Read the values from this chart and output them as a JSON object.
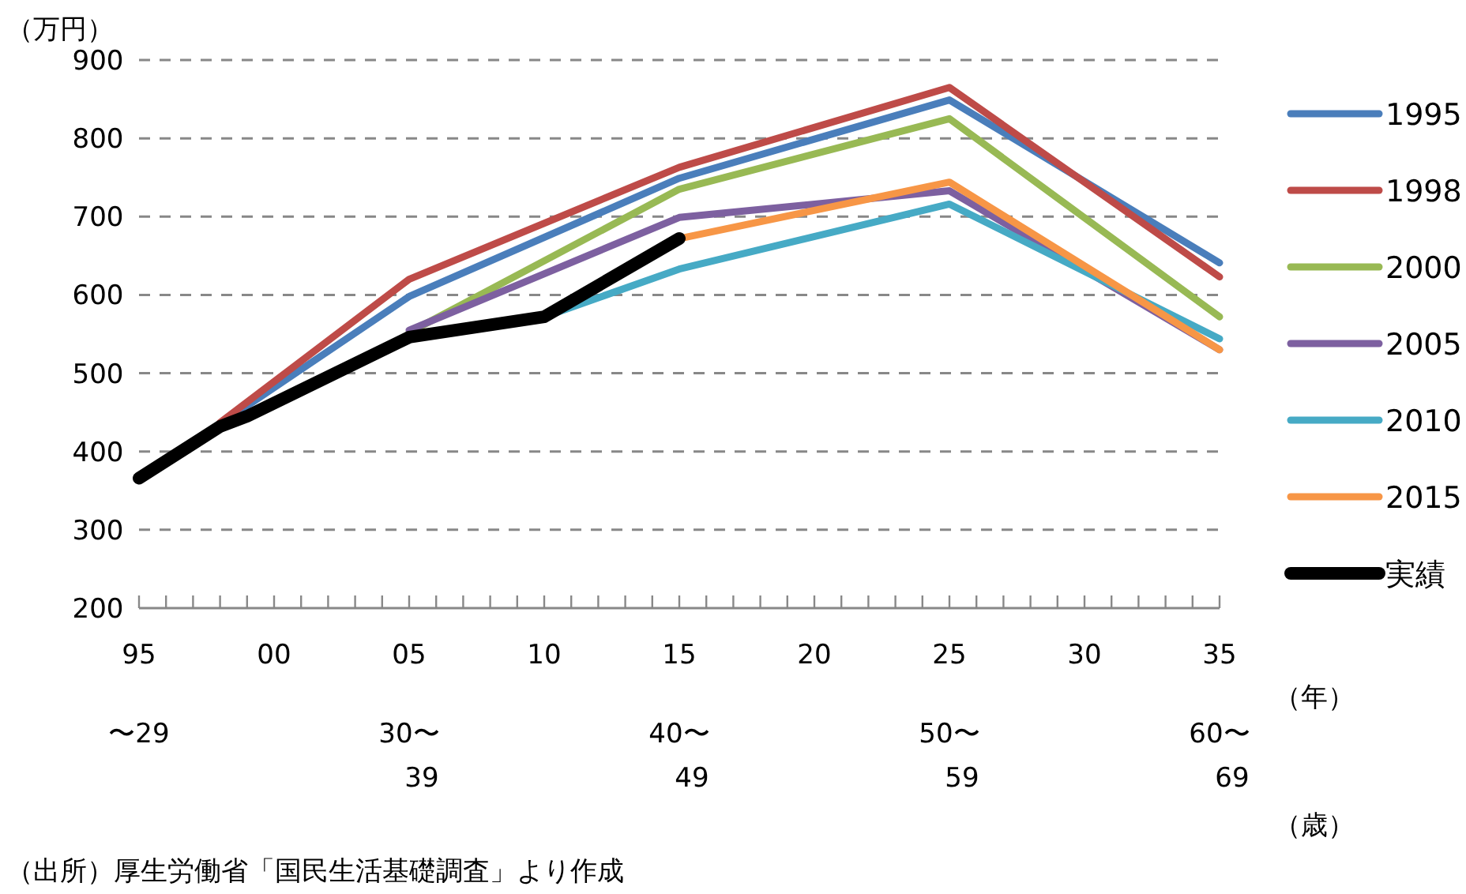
{
  "chart_data": {
    "type": "line",
    "ylabel": "（万円）",
    "xlabel": "（年）",
    "xlim": [
      1995,
      2035
    ],
    "ylim": [
      200,
      900
    ],
    "yticks": [
      200,
      300,
      400,
      500,
      600,
      700,
      800,
      900
    ],
    "xticks": [
      {
        "value": 1995,
        "label": "95"
      },
      {
        "value": 1996,
        "label": null
      },
      {
        "value": 1997,
        "label": null
      },
      {
        "value": 1998,
        "label": null
      },
      {
        "value": 1999,
        "label": null
      },
      {
        "value": 2000,
        "label": "00"
      },
      {
        "value": 2001,
        "label": null
      },
      {
        "value": 2002,
        "label": null
      },
      {
        "value": 2003,
        "label": null
      },
      {
        "value": 2004,
        "label": null
      },
      {
        "value": 2005,
        "label": "05"
      },
      {
        "value": 2006,
        "label": null
      },
      {
        "value": 2007,
        "label": null
      },
      {
        "value": 2008,
        "label": null
      },
      {
        "value": 2009,
        "label": null
      },
      {
        "value": 2010,
        "label": "10"
      },
      {
        "value": 2011,
        "label": null
      },
      {
        "value": 2012,
        "label": null
      },
      {
        "value": 2013,
        "label": null
      },
      {
        "value": 2014,
        "label": null
      },
      {
        "value": 2015,
        "label": "15"
      },
      {
        "value": 2016,
        "label": null
      },
      {
        "value": 2017,
        "label": null
      },
      {
        "value": 2018,
        "label": null
      },
      {
        "value": 2019,
        "label": null
      },
      {
        "value": 2020,
        "label": "20"
      },
      {
        "value": 2021,
        "label": null
      },
      {
        "value": 2022,
        "label": null
      },
      {
        "value": 2023,
        "label": null
      },
      {
        "value": 2024,
        "label": null
      },
      {
        "value": 2025,
        "label": "25"
      },
      {
        "value": 2026,
        "label": null
      },
      {
        "value": 2027,
        "label": null
      },
      {
        "value": 2028,
        "label": null
      },
      {
        "value": 2029,
        "label": null
      },
      {
        "value": 2030,
        "label": "30"
      },
      {
        "value": 2031,
        "label": null
      },
      {
        "value": 2032,
        "label": null
      },
      {
        "value": 2033,
        "label": null
      },
      {
        "value": 2034,
        "label": null
      },
      {
        "value": 2035,
        "label": "35"
      }
    ],
    "grid": "y",
    "line_style": "solid",
    "legend": "right",
    "marker": "none",
    "series": [
      {
        "name": "1995",
        "color": "#4a7ebb",
        "x": [
          1998,
          2005,
          2015,
          2025,
          2035
        ],
        "values": [
          435,
          598,
          749,
          849,
          641
        ]
      },
      {
        "name": "1998",
        "color": "#be4b48",
        "x": [
          1998,
          2005,
          2015,
          2025,
          2035
        ],
        "values": [
          437,
          620,
          763,
          865,
          623
        ]
      },
      {
        "name": "2000",
        "color": "#98b954",
        "x": [
          2005,
          2015,
          2025,
          2035
        ],
        "values": [
          552,
          735,
          825,
          572
        ]
      },
      {
        "name": "2005",
        "color": "#7d60a0",
        "x": [
          2005,
          2015,
          2025,
          2035
        ],
        "values": [
          555,
          699,
          733,
          530
        ]
      },
      {
        "name": "2010",
        "color": "#46aac5",
        "x": [
          2010,
          2015,
          2025,
          2035
        ],
        "values": [
          572,
          633,
          716,
          544
        ]
      },
      {
        "name": "2015",
        "color": "#f79646",
        "x": [
          2015,
          2025,
          2035
        ],
        "values": [
          672,
          744,
          530
        ]
      },
      {
        "name": "実績",
        "color": "#000000",
        "x": [
          1995,
          1998,
          1999,
          2005,
          2010,
          2015
        ],
        "values": [
          366,
          432,
          445,
          546,
          572,
          672
        ]
      }
    ],
    "annotations": [
      "〜29",
      "30〜\n39",
      "40〜\n49",
      "50〜\n59",
      "60〜\n69",
      "（歳）",
      "（出所）厚生労働省「国民生活基礎調査」より作成"
    ]
  }
}
